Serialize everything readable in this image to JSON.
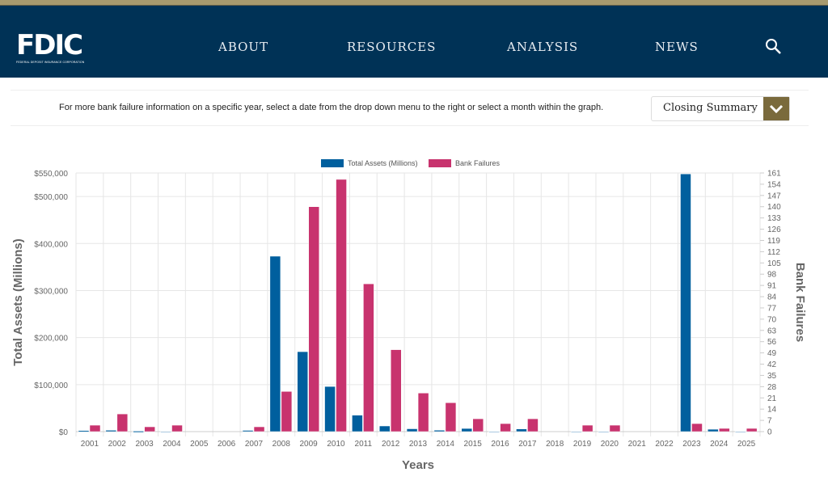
{
  "header": {
    "logo": "FDIC",
    "logo_subtitle": "FEDERAL DEPOSIT INSURANCE CORPORATION",
    "nav": [
      "ABOUT",
      "RESOURCES",
      "ANALYSIS",
      "NEWS"
    ],
    "search_icon": "search-icon"
  },
  "info": {
    "text": "For more bank failure information on a specific year, select a date from the drop down menu to the right or select a month within the graph.",
    "select_value": "Closing Summary"
  },
  "colors": {
    "header": "#003256",
    "assets": "#005f9e",
    "failures": "#c8336e",
    "dropdown_button": "#7a6a3c"
  },
  "chart_data": {
    "type": "bar",
    "categories": [
      "2001",
      "2002",
      "2003",
      "2004",
      "2005",
      "2006",
      "2007",
      "2008",
      "2009",
      "2010",
      "2011",
      "2012",
      "2013",
      "2014",
      "2015",
      "2016",
      "2017",
      "2018",
      "2019",
      "2020",
      "2021",
      "2022",
      "2023",
      "2024",
      "2025"
    ],
    "series": [
      {
        "name": "Total Assets (Millions)",
        "axis": "left",
        "values": [
          2300,
          2900,
          1000,
          170,
          0,
          0,
          2600,
          373000,
          170000,
          96000,
          35000,
          12000,
          6000,
          3000,
          6700,
          300,
          5600,
          0,
          200,
          450,
          0,
          0,
          548000,
          5000,
          400
        ]
      },
      {
        "name": "Bank Failures",
        "axis": "right",
        "values": [
          4,
          11,
          3,
          4,
          0,
          0,
          3,
          25,
          140,
          157,
          92,
          51,
          24,
          18,
          8,
          5,
          8,
          0,
          4,
          4,
          0,
          0,
          5,
          2,
          2
        ]
      }
    ],
    "ylabel": "Total Assets (Millions)",
    "y2label": "Bank Failures",
    "xlabel": "Years",
    "ylim": [
      0,
      550000
    ],
    "y2lim": [
      0,
      161
    ],
    "yticks": [
      "$0",
      "$100,000",
      "$200,000",
      "$300,000",
      "$400,000",
      "$500,000",
      "$550,000"
    ],
    "y2ticks": [
      "0",
      "7",
      "14",
      "21",
      "28",
      "35",
      "42",
      "49",
      "56",
      "63",
      "70",
      "77",
      "84",
      "91",
      "98",
      "105",
      "112",
      "119",
      "126",
      "133",
      "140",
      "147",
      "154",
      "161"
    ],
    "legend": "top",
    "grid": true
  }
}
